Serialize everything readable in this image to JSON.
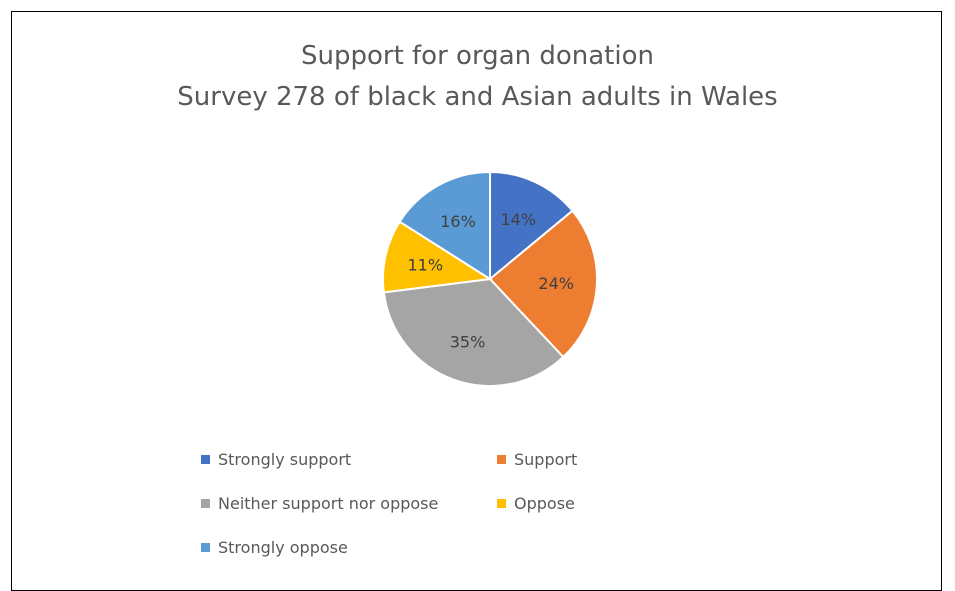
{
  "chart_data": {
    "type": "pie",
    "title_lines": [
      "Support for organ donation",
      "Survey 278 of black and Asian adults in Wales"
    ],
    "slices": [
      {
        "label": "Strongly support",
        "value": 14,
        "display": "14%",
        "color": "#4472C4"
      },
      {
        "label": "Support",
        "value": 24,
        "display": "24%",
        "color": "#ED7D31"
      },
      {
        "label": "Neither support nor oppose",
        "value": 35,
        "display": "35%",
        "color": "#A5A5A5"
      },
      {
        "label": "Oppose",
        "value": 11,
        "display": "11%",
        "color": "#FFC000"
      },
      {
        "label": "Strongly oppose",
        "value": 16,
        "display": "16%",
        "color": "#5B9BD5"
      }
    ],
    "start": "12 o'clock",
    "direction": "clockwise",
    "legend_position": "bottom"
  }
}
